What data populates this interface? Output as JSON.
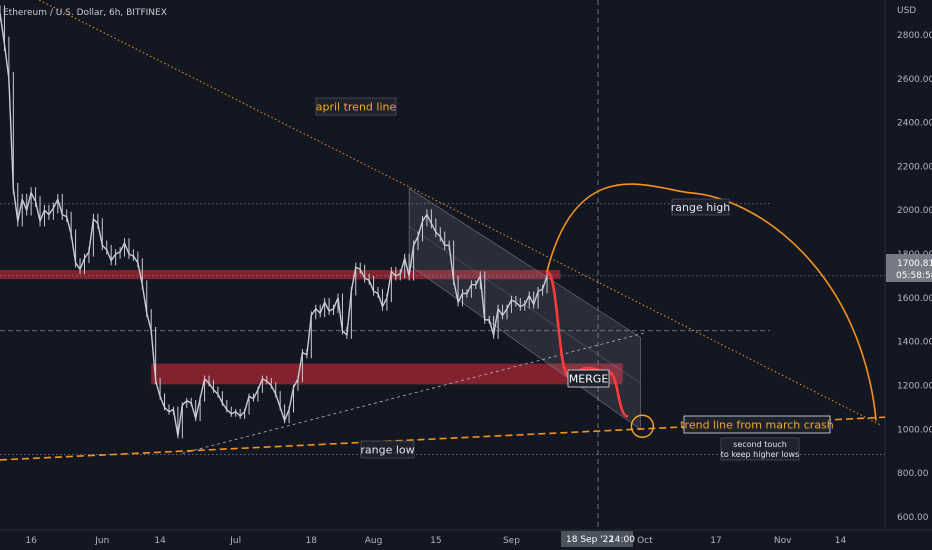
{
  "header": {
    "symbol": "Ethereum / U.S. Dollar, 6h, BITFINEX",
    "currency": "USD"
  },
  "price_tag": {
    "price": "1700.81",
    "countdown": "05:58:58",
    "color": "#787b86"
  },
  "crosshair_date_label": "18 Sep '22",
  "crosshair_time_label": "14:00",
  "colors": {
    "background": "#131722",
    "candles": "#c9ccd4",
    "zone": "#b22833",
    "trend_line": "#f7931a",
    "projection": "#ff3b3b",
    "annotation_text": "#f5a623",
    "label_text": "#ffffff"
  },
  "chart_data": {
    "type": "line",
    "title": "Ethereum / U.S. Dollar, 6h, BITFINEX",
    "xlabel": "",
    "ylabel": "",
    "y_unit": "USD",
    "ylim": [
      540,
      2960
    ],
    "grid": false,
    "y_ticks": [
      600,
      800,
      1000,
      1200,
      1400,
      1600,
      1800,
      2000,
      2200,
      2400,
      2600,
      2800
    ],
    "x_range": [
      "2022-05-09",
      "2022-11-24"
    ],
    "x_ticks": [
      {
        "date": "2022-05-16",
        "label": "16"
      },
      {
        "date": "2022-06-01",
        "label": "Jun"
      },
      {
        "date": "2022-06-14",
        "label": "14"
      },
      {
        "date": "2022-07-01",
        "label": "Jul"
      },
      {
        "date": "2022-07-18",
        "label": "18"
      },
      {
        "date": "2022-08-01",
        "label": "Aug"
      },
      {
        "date": "2022-08-15",
        "label": "15"
      },
      {
        "date": "2022-09-01",
        "label": "Sep"
      },
      {
        "date": "2022-10-01",
        "label": "Oct"
      },
      {
        "date": "2022-10-17",
        "label": "17"
      },
      {
        "date": "2022-11-01",
        "label": "Nov"
      },
      {
        "date": "2022-11-14",
        "label": "14"
      }
    ],
    "series": [
      {
        "values": [
          [
            "2022-05-09",
            2900
          ],
          [
            "2022-05-10",
            2760
          ],
          [
            "2022-05-11",
            2600
          ],
          [
            "2022-05-12",
            2100
          ],
          [
            "2022-05-13",
            1950
          ],
          [
            "2022-05-14",
            2050
          ],
          [
            "2022-05-15",
            2000
          ],
          [
            "2022-05-16",
            2080
          ],
          [
            "2022-05-17",
            2040
          ],
          [
            "2022-05-18",
            1950
          ],
          [
            "2022-05-19",
            2000
          ],
          [
            "2022-05-20",
            1980
          ],
          [
            "2022-05-21",
            2010
          ],
          [
            "2022-05-22",
            2050
          ],
          [
            "2022-05-23",
            1980
          ],
          [
            "2022-05-24",
            1970
          ],
          [
            "2022-05-25",
            1890
          ],
          [
            "2022-05-26",
            1760
          ],
          [
            "2022-05-27",
            1730
          ],
          [
            "2022-05-28",
            1780
          ],
          [
            "2022-05-29",
            1810
          ],
          [
            "2022-05-30",
            1960
          ],
          [
            "2022-05-31",
            1940
          ],
          [
            "2022-06-01",
            1840
          ],
          [
            "2022-06-02",
            1820
          ],
          [
            "2022-06-03",
            1770
          ],
          [
            "2022-06-04",
            1800
          ],
          [
            "2022-06-05",
            1810
          ],
          [
            "2022-06-06",
            1850
          ],
          [
            "2022-06-07",
            1800
          ],
          [
            "2022-06-08",
            1790
          ],
          [
            "2022-06-09",
            1760
          ],
          [
            "2022-06-10",
            1660
          ],
          [
            "2022-06-11",
            1530
          ],
          [
            "2022-06-12",
            1450
          ],
          [
            "2022-06-13",
            1220
          ],
          [
            "2022-06-14",
            1150
          ],
          [
            "2022-06-15",
            1100
          ],
          [
            "2022-06-16",
            1080
          ],
          [
            "2022-06-17",
            1090
          ],
          [
            "2022-06-18",
            970
          ],
          [
            "2022-06-19",
            1110
          ],
          [
            "2022-06-20",
            1130
          ],
          [
            "2022-06-21",
            1120
          ],
          [
            "2022-06-22",
            1050
          ],
          [
            "2022-06-23",
            1140
          ],
          [
            "2022-06-24",
            1230
          ],
          [
            "2022-06-25",
            1210
          ],
          [
            "2022-06-26",
            1180
          ],
          [
            "2022-06-27",
            1160
          ],
          [
            "2022-06-28",
            1120
          ],
          [
            "2022-06-29",
            1090
          ],
          [
            "2022-06-30",
            1070
          ],
          [
            "2022-07-01",
            1080
          ],
          [
            "2022-07-02",
            1060
          ],
          [
            "2022-07-03",
            1080
          ],
          [
            "2022-07-04",
            1150
          ],
          [
            "2022-07-05",
            1140
          ],
          [
            "2022-07-06",
            1180
          ],
          [
            "2022-07-07",
            1230
          ],
          [
            "2022-07-08",
            1220
          ],
          [
            "2022-07-09",
            1200
          ],
          [
            "2022-07-10",
            1160
          ],
          [
            "2022-07-11",
            1100
          ],
          [
            "2022-07-12",
            1040
          ],
          [
            "2022-07-13",
            1090
          ],
          [
            "2022-07-14",
            1190
          ],
          [
            "2022-07-15",
            1230
          ],
          [
            "2022-07-16",
            1350
          ],
          [
            "2022-07-17",
            1340
          ],
          [
            "2022-07-18",
            1520
          ],
          [
            "2022-07-19",
            1550
          ],
          [
            "2022-07-20",
            1530
          ],
          [
            "2022-07-21",
            1580
          ],
          [
            "2022-07-22",
            1540
          ],
          [
            "2022-07-23",
            1550
          ],
          [
            "2022-07-24",
            1600
          ],
          [
            "2022-07-25",
            1450
          ],
          [
            "2022-07-26",
            1430
          ],
          [
            "2022-07-27",
            1630
          ],
          [
            "2022-07-28",
            1740
          ],
          [
            "2022-07-29",
            1730
          ],
          [
            "2022-07-30",
            1690
          ],
          [
            "2022-07-31",
            1680
          ],
          [
            "2022-08-01",
            1630
          ],
          [
            "2022-08-02",
            1620
          ],
          [
            "2022-08-03",
            1560
          ],
          [
            "2022-08-04",
            1600
          ],
          [
            "2022-08-05",
            1720
          ],
          [
            "2022-08-06",
            1700
          ],
          [
            "2022-08-07",
            1710
          ],
          [
            "2022-08-08",
            1780
          ],
          [
            "2022-08-09",
            1700
          ],
          [
            "2022-08-10",
            1840
          ],
          [
            "2022-08-11",
            1880
          ],
          [
            "2022-08-12",
            1950
          ],
          [
            "2022-08-13",
            1980
          ],
          [
            "2022-08-14",
            1940
          ],
          [
            "2022-08-15",
            1900
          ],
          [
            "2022-08-16",
            1880
          ],
          [
            "2022-08-17",
            1840
          ],
          [
            "2022-08-18",
            1840
          ],
          [
            "2022-08-19",
            1680
          ],
          [
            "2022-08-20",
            1580
          ],
          [
            "2022-08-21",
            1620
          ],
          [
            "2022-08-22",
            1620
          ],
          [
            "2022-08-23",
            1660
          ],
          [
            "2022-08-24",
            1660
          ],
          [
            "2022-08-25",
            1700
          ],
          [
            "2022-08-26",
            1500
          ],
          [
            "2022-08-27",
            1500
          ],
          [
            "2022-08-28",
            1430
          ],
          [
            "2022-08-29",
            1550
          ],
          [
            "2022-08-30",
            1520
          ],
          [
            "2022-08-31",
            1550
          ],
          [
            "2022-09-01",
            1590
          ],
          [
            "2022-09-02",
            1580
          ],
          [
            "2022-09-03",
            1560
          ],
          [
            "2022-09-04",
            1570
          ],
          [
            "2022-09-05",
            1610
          ],
          [
            "2022-09-06",
            1570
          ],
          [
            "2022-09-07",
            1630
          ],
          [
            "2022-09-08",
            1640
          ],
          [
            "2022-09-09",
            1700
          ]
        ]
      }
    ],
    "annotations": [
      {
        "text": "april trend line",
        "date": "2022-08-01",
        "price": 2530
      },
      {
        "text": "range high",
        "date": "2022-10-17",
        "price": 1975
      },
      {
        "text": "MERGE",
        "date": "2022-09-15",
        "price": 1150
      },
      {
        "text": "trend line from march crash",
        "date": "2022-10-21",
        "price": 940
      },
      {
        "text": "range low",
        "date": "2022-07-28",
        "price": 820
      },
      {
        "text": "second touch",
        "date": "2022-10-21",
        "price": 855
      },
      {
        "text": "to keep higher lows",
        "date": "2022-10-21",
        "price": 800
      }
    ],
    "horizontal_lines": [
      {
        "price": 2030,
        "style": "dotted"
      },
      {
        "price": 1450,
        "style": "dashed"
      },
      {
        "price": 885,
        "style": "dotted"
      },
      {
        "price": 1700.81,
        "style": "dotted"
      }
    ],
    "zones": [
      {
        "from": "2022-05-09",
        "to": "2022-09-12",
        "price_low": 1685,
        "price_high": 1727
      },
      {
        "from": "2022-06-12",
        "to": "2022-09-26",
        "price_low": 1205,
        "price_high": 1300
      }
    ],
    "trend_lines": [
      {
        "points": [
          [
            "2022-05-09",
            3050
          ],
          [
            "2022-11-23",
            1020
          ]
        ],
        "style": "dotted"
      },
      {
        "points": [
          [
            "2022-05-09",
            860
          ],
          [
            "2022-11-24",
            1055
          ]
        ],
        "style": "dashed"
      },
      {
        "points": [
          [
            "2022-06-19",
            890
          ],
          [
            "2022-10-01",
            1440
          ]
        ],
        "style": "dashed"
      }
    ],
    "projections": [
      {
        "kind": "red_path",
        "points": [
          [
            "2022-09-09",
            1720
          ],
          [
            "2022-09-14",
            1240
          ],
          [
            "2022-09-18",
            1280
          ],
          [
            "2022-09-23",
            1260
          ],
          [
            "2022-09-27",
            1060
          ]
        ]
      },
      {
        "kind": "orange_arc",
        "points": [
          [
            "2022-09-09",
            1720
          ],
          [
            "2022-10-11",
            2080
          ],
          [
            "2022-11-22",
            1040
          ]
        ]
      }
    ],
    "channel": {
      "upper": [
        [
          "2022-08-09",
          2100
        ],
        [
          "2022-09-30",
          1420
        ]
      ],
      "lower": [
        [
          "2022-08-09",
          1750
        ],
        [
          "2022-09-30",
          1000
        ]
      ]
    },
    "targets": [
      {
        "date": "2022-09-30",
        "price": 1000
      }
    ]
  }
}
